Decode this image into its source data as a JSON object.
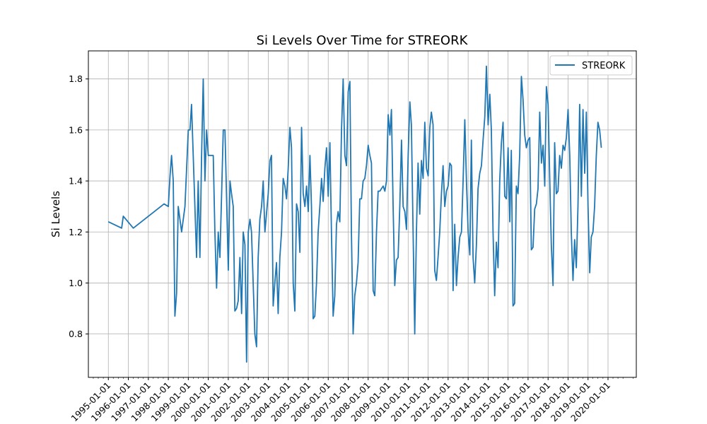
{
  "chart_data": {
    "type": "line",
    "title": "Si Levels Over Time for STREORK",
    "xlabel": "",
    "ylabel": "Si Levels",
    "x_ticks": [
      "1995-01-01",
      "1996-01-01",
      "1997-01-01",
      "1998-01-01",
      "1999-01-01",
      "2000-01-01",
      "2001-01-01",
      "2002-01-01",
      "2003-01-01",
      "2004-01-01",
      "2005-01-01",
      "2006-01-01",
      "2007-01-01",
      "2008-01-01",
      "2009-01-01",
      "2010-01-01",
      "2011-01-01",
      "2012-01-01",
      "2013-01-01",
      "2014-01-01",
      "2015-01-01",
      "2016-01-01",
      "2017-01-01",
      "2018-01-01",
      "2019-01-01",
      "2020-01-01"
    ],
    "y_ticks": [
      0.8,
      1.0,
      1.2,
      1.4,
      1.6,
      1.8
    ],
    "xlim": [
      "1994-01-01",
      "2021-06-01"
    ],
    "ylim": [
      0.63,
      1.91
    ],
    "grid": true,
    "legend_position": "top-right",
    "series": [
      {
        "name": "STREORK",
        "color": "#1f77b4",
        "points": [
          [
            "1995-01-01",
            1.24
          ],
          [
            "1995-09-01",
            1.215
          ],
          [
            "1995-10-01",
            1.262
          ],
          [
            "1996-04-01",
            1.215
          ],
          [
            "1997-10-15",
            1.31
          ],
          [
            "1998-01-01",
            1.3
          ],
          [
            "1998-02-01",
            1.42
          ],
          [
            "1998-03-01",
            1.5
          ],
          [
            "1998-04-01",
            1.4
          ],
          [
            "1998-05-01",
            0.87
          ],
          [
            "1998-06-01",
            0.96
          ],
          [
            "1998-07-01",
            1.3
          ],
          [
            "1998-08-01",
            1.25
          ],
          [
            "1998-09-01",
            1.2
          ],
          [
            "1998-11-01",
            1.3
          ],
          [
            "1999-01-01",
            1.6
          ],
          [
            "1999-02-01",
            1.6
          ],
          [
            "1999-03-01",
            1.7
          ],
          [
            "1999-04-01",
            1.5
          ],
          [
            "1999-06-01",
            1.1
          ],
          [
            "1999-07-01",
            1.4
          ],
          [
            "1999-08-01",
            1.1
          ],
          [
            "1999-09-01",
            1.5
          ],
          [
            "1999-10-01",
            1.8
          ],
          [
            "1999-11-01",
            1.4
          ],
          [
            "1999-12-01",
            1.6
          ],
          [
            "2000-01-01",
            1.5
          ],
          [
            "2000-04-01",
            1.5
          ],
          [
            "2000-05-01",
            1.2
          ],
          [
            "2000-06-01",
            0.98
          ],
          [
            "2000-07-01",
            1.2
          ],
          [
            "2000-08-01",
            1.1
          ],
          [
            "2000-09-01",
            1.35
          ],
          [
            "2000-10-01",
            1.6
          ],
          [
            "2000-11-01",
            1.6
          ],
          [
            "2001-01-01",
            1.05
          ],
          [
            "2001-02-01",
            1.4
          ],
          [
            "2001-03-01",
            1.35
          ],
          [
            "2001-04-01",
            1.3
          ],
          [
            "2001-05-01",
            0.89
          ],
          [
            "2001-06-01",
            0.9
          ],
          [
            "2001-07-01",
            0.93
          ],
          [
            "2001-08-01",
            1.1
          ],
          [
            "2001-09-01",
            0.88
          ],
          [
            "2001-10-01",
            1.2
          ],
          [
            "2001-11-01",
            1.15
          ],
          [
            "2001-12-01",
            0.69
          ],
          [
            "2002-01-01",
            1.2
          ],
          [
            "2002-02-01",
            1.25
          ],
          [
            "2002-03-01",
            1.2
          ],
          [
            "2002-05-01",
            0.8
          ],
          [
            "2002-06-01",
            0.75
          ],
          [
            "2002-07-01",
            1.1
          ],
          [
            "2002-08-01",
            1.25
          ],
          [
            "2002-09-01",
            1.3
          ],
          [
            "2002-10-01",
            1.4
          ],
          [
            "2002-11-01",
            1.2
          ],
          [
            "2003-01-01",
            1.35
          ],
          [
            "2003-02-01",
            1.48
          ],
          [
            "2003-03-01",
            1.5
          ],
          [
            "2003-04-01",
            0.91
          ],
          [
            "2003-05-01",
            1.0
          ],
          [
            "2003-06-01",
            1.08
          ],
          [
            "2003-07-01",
            0.88
          ],
          [
            "2003-08-01",
            1.1
          ],
          [
            "2003-09-01",
            1.2
          ],
          [
            "2003-10-01",
            1.41
          ],
          [
            "2003-11-01",
            1.38
          ],
          [
            "2003-12-01",
            1.33
          ],
          [
            "2004-01-01",
            1.45
          ],
          [
            "2004-02-01",
            1.61
          ],
          [
            "2004-03-01",
            1.53
          ],
          [
            "2004-04-01",
            1.0
          ],
          [
            "2004-05-01",
            0.89
          ],
          [
            "2004-06-01",
            1.31
          ],
          [
            "2004-07-01",
            1.28
          ],
          [
            "2004-08-01",
            1.12
          ],
          [
            "2004-09-01",
            1.61
          ],
          [
            "2004-10-01",
            1.35
          ],
          [
            "2004-11-01",
            1.3
          ],
          [
            "2004-12-01",
            1.38
          ],
          [
            "2005-01-01",
            1.28
          ],
          [
            "2005-02-01",
            1.5
          ],
          [
            "2005-03-01",
            1.3
          ],
          [
            "2005-04-01",
            0.86
          ],
          [
            "2005-05-01",
            0.87
          ],
          [
            "2005-06-01",
            1.0
          ],
          [
            "2005-07-01",
            1.2
          ],
          [
            "2005-08-01",
            1.3
          ],
          [
            "2005-09-01",
            1.41
          ],
          [
            "2005-10-01",
            1.32
          ],
          [
            "2005-11-01",
            1.45
          ],
          [
            "2005-12-01",
            1.53
          ],
          [
            "2006-01-01",
            1.34
          ],
          [
            "2006-02-01",
            1.55
          ],
          [
            "2006-03-01",
            1.2
          ],
          [
            "2006-04-01",
            0.87
          ],
          [
            "2006-05-01",
            0.95
          ],
          [
            "2006-06-01",
            1.23
          ],
          [
            "2006-07-01",
            1.28
          ],
          [
            "2006-08-01",
            1.24
          ],
          [
            "2006-09-01",
            1.6
          ],
          [
            "2006-10-01",
            1.8
          ],
          [
            "2006-11-01",
            1.5
          ],
          [
            "2006-12-01",
            1.46
          ],
          [
            "2007-01-01",
            1.75
          ],
          [
            "2007-02-01",
            1.79
          ],
          [
            "2007-03-01",
            1.2
          ],
          [
            "2007-04-01",
            0.8
          ],
          [
            "2007-05-01",
            0.95
          ],
          [
            "2007-06-01",
            1.0
          ],
          [
            "2007-07-01",
            1.08
          ],
          [
            "2007-08-01",
            1.33
          ],
          [
            "2007-09-01",
            1.33
          ],
          [
            "2007-10-01",
            1.4
          ],
          [
            "2007-11-01",
            1.41
          ],
          [
            "2007-12-01",
            1.46
          ],
          [
            "2008-01-01",
            1.54
          ],
          [
            "2008-02-01",
            1.5
          ],
          [
            "2008-03-01",
            1.47
          ],
          [
            "2008-04-01",
            0.97
          ],
          [
            "2008-05-01",
            0.95
          ],
          [
            "2008-06-01",
            1.2
          ],
          [
            "2008-07-01",
            1.36
          ],
          [
            "2008-08-01",
            1.36
          ],
          [
            "2008-09-01",
            1.37
          ],
          [
            "2008-10-01",
            1.38
          ],
          [
            "2008-11-01",
            1.36
          ],
          [
            "2008-12-01",
            1.4
          ],
          [
            "2009-01-01",
            1.66
          ],
          [
            "2009-02-01",
            1.58
          ],
          [
            "2009-03-01",
            1.68
          ],
          [
            "2009-04-01",
            1.3
          ],
          [
            "2009-05-01",
            0.99
          ],
          [
            "2009-06-01",
            1.09
          ],
          [
            "2009-07-01",
            1.1
          ],
          [
            "2009-08-01",
            1.3
          ],
          [
            "2009-09-01",
            1.56
          ],
          [
            "2009-10-01",
            1.3
          ],
          [
            "2009-11-01",
            1.28
          ],
          [
            "2009-12-01",
            1.21
          ],
          [
            "2010-01-01",
            1.5
          ],
          [
            "2010-02-01",
            1.71
          ],
          [
            "2010-03-01",
            1.62
          ],
          [
            "2010-04-01",
            1.2
          ],
          [
            "2010-05-01",
            0.8
          ],
          [
            "2010-06-01",
            1.2
          ],
          [
            "2010-07-01",
            1.47
          ],
          [
            "2010-08-01",
            1.27
          ],
          [
            "2010-09-01",
            1.48
          ],
          [
            "2010-10-01",
            1.41
          ],
          [
            "2010-11-01",
            1.63
          ],
          [
            "2010-12-01",
            1.45
          ],
          [
            "2011-01-01",
            1.42
          ],
          [
            "2011-02-01",
            1.61
          ],
          [
            "2011-03-01",
            1.67
          ],
          [
            "2011-04-01",
            1.62
          ],
          [
            "2011-05-01",
            1.05
          ],
          [
            "2011-06-01",
            1.01
          ],
          [
            "2011-07-01",
            1.1
          ],
          [
            "2011-08-01",
            1.2
          ],
          [
            "2011-09-01",
            1.35
          ],
          [
            "2011-10-01",
            1.46
          ],
          [
            "2011-11-01",
            1.3
          ],
          [
            "2011-12-01",
            1.36
          ],
          [
            "2012-01-01",
            1.38
          ],
          [
            "2012-02-01",
            1.47
          ],
          [
            "2012-03-01",
            1.46
          ],
          [
            "2012-04-01",
            0.97
          ],
          [
            "2012-05-01",
            1.23
          ],
          [
            "2012-06-01",
            0.99
          ],
          [
            "2012-07-01",
            1.1
          ],
          [
            "2012-08-01",
            1.18
          ],
          [
            "2012-09-01",
            1.2
          ],
          [
            "2012-10-01",
            1.4
          ],
          [
            "2012-11-01",
            1.64
          ],
          [
            "2012-12-01",
            1.4
          ],
          [
            "2013-01-01",
            1.2
          ],
          [
            "2013-02-01",
            1.11
          ],
          [
            "2013-03-01",
            1.56
          ],
          [
            "2013-04-01",
            1.1
          ],
          [
            "2013-05-01",
            1.0
          ],
          [
            "2013-06-01",
            1.15
          ],
          [
            "2013-07-01",
            1.37
          ],
          [
            "2013-08-01",
            1.43
          ],
          [
            "2013-09-01",
            1.46
          ],
          [
            "2013-10-01",
            1.56
          ],
          [
            "2013-11-01",
            1.65
          ],
          [
            "2013-12-01",
            1.85
          ],
          [
            "2014-01-01",
            1.62
          ],
          [
            "2014-02-01",
            1.74
          ],
          [
            "2014-03-01",
            1.6
          ],
          [
            "2014-04-01",
            1.2
          ],
          [
            "2014-05-01",
            0.95
          ],
          [
            "2014-06-01",
            1.16
          ],
          [
            "2014-07-01",
            1.06
          ],
          [
            "2014-08-01",
            1.4
          ],
          [
            "2014-09-01",
            1.55
          ],
          [
            "2014-10-01",
            1.63
          ],
          [
            "2014-11-01",
            1.34
          ],
          [
            "2014-12-01",
            1.33
          ],
          [
            "2015-01-01",
            1.53
          ],
          [
            "2015-02-01",
            1.24
          ],
          [
            "2015-03-01",
            1.52
          ],
          [
            "2015-04-01",
            0.91
          ],
          [
            "2015-05-01",
            0.92
          ],
          [
            "2015-06-01",
            1.38
          ],
          [
            "2015-07-01",
            1.35
          ],
          [
            "2015-08-01",
            1.5
          ],
          [
            "2015-09-01",
            1.81
          ],
          [
            "2015-10-01",
            1.72
          ],
          [
            "2015-11-01",
            1.58
          ],
          [
            "2015-12-01",
            1.53
          ],
          [
            "2016-01-01",
            1.56
          ],
          [
            "2016-02-01",
            1.57
          ],
          [
            "2016-03-01",
            1.13
          ],
          [
            "2016-04-01",
            1.14
          ],
          [
            "2016-05-01",
            1.29
          ],
          [
            "2016-06-01",
            1.31
          ],
          [
            "2016-07-01",
            1.37
          ],
          [
            "2016-08-01",
            1.67
          ],
          [
            "2016-09-01",
            1.47
          ],
          [
            "2016-10-01",
            1.54
          ],
          [
            "2016-11-01",
            1.38
          ],
          [
            "2016-12-01",
            1.77
          ],
          [
            "2017-01-01",
            1.7
          ],
          [
            "2017-02-01",
            1.4
          ],
          [
            "2017-03-01",
            1.15
          ],
          [
            "2017-04-01",
            0.99
          ],
          [
            "2017-05-01",
            1.55
          ],
          [
            "2017-06-01",
            1.35
          ],
          [
            "2017-07-01",
            1.36
          ],
          [
            "2017-08-01",
            1.5
          ],
          [
            "2017-09-01",
            1.45
          ],
          [
            "2017-10-01",
            1.54
          ],
          [
            "2017-11-01",
            1.52
          ],
          [
            "2017-12-01",
            1.57
          ],
          [
            "2018-01-01",
            1.68
          ],
          [
            "2018-02-01",
            1.5
          ],
          [
            "2018-03-01",
            1.2
          ],
          [
            "2018-04-01",
            1.01
          ],
          [
            "2018-05-01",
            1.17
          ],
          [
            "2018-06-01",
            1.06
          ],
          [
            "2018-07-01",
            1.3
          ],
          [
            "2018-08-01",
            1.7
          ],
          [
            "2018-09-01",
            1.34
          ],
          [
            "2018-10-01",
            1.68
          ],
          [
            "2018-11-01",
            1.43
          ],
          [
            "2018-12-01",
            1.67
          ],
          [
            "2019-01-01",
            1.3
          ],
          [
            "2019-02-01",
            1.04
          ],
          [
            "2019-03-01",
            1.18
          ],
          [
            "2019-04-01",
            1.2
          ],
          [
            "2019-05-01",
            1.3
          ],
          [
            "2019-06-01",
            1.5
          ],
          [
            "2019-07-01",
            1.63
          ],
          [
            "2019-08-01",
            1.6
          ],
          [
            "2019-09-01",
            1.53
          ]
        ]
      }
    ]
  }
}
